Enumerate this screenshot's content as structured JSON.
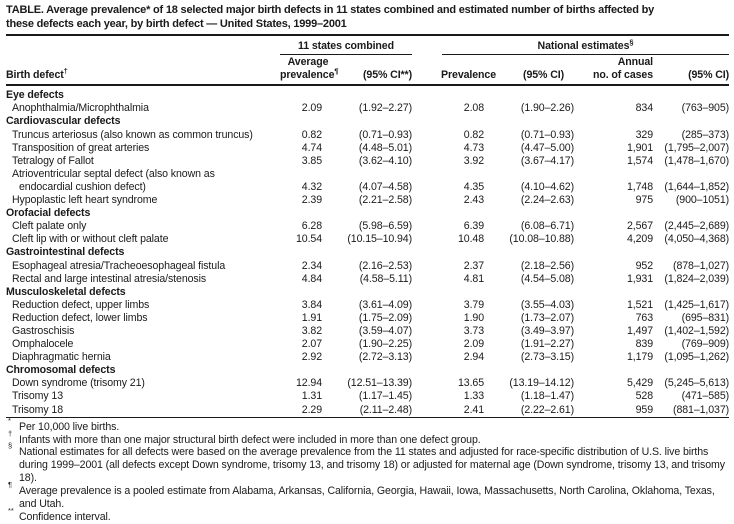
{
  "title": "TABLE. Average prevalence* of 18 selected major birth defects in 11 states combined and estimated number of births affected by\nthese defects each year, by birth defect — United States, 1999–2001",
  "header": {
    "group_states": "11 states combined",
    "group_national": {
      "text": "National estimates",
      "sup": "§"
    },
    "col_birth_defect": {
      "text": "Birth defect",
      "sup": "†"
    },
    "col_avg_prevalence": {
      "line1": "Average",
      "line2": "prevalence",
      "sup": "¶"
    },
    "col_ci_states": "(95% CI**)",
    "col_prevalence": "Prevalence",
    "col_ci_national": "(95% CI)",
    "col_annual_cases": {
      "line1": "Annual",
      "line2": "no. of cases"
    },
    "col_ci_cases": "(95% CI)"
  },
  "rows": [
    {
      "type": "category",
      "label": "Eye defects"
    },
    {
      "type": "data",
      "label": "Anophthalmia/Microphthalmia",
      "values": [
        "2.09",
        "(1.92–2.27)",
        "2.08",
        "(1.90–2.26)",
        "834",
        "(763–905)"
      ]
    },
    {
      "type": "category",
      "label": "Cardiovascular defects"
    },
    {
      "type": "data",
      "label": "Truncus arteriosus (also known as common truncus)",
      "values": [
        "0.82",
        "(0.71–0.93)",
        "0.82",
        "(0.71–0.93)",
        "329",
        "(285–373)"
      ]
    },
    {
      "type": "data",
      "label": "Transposition of great arteries",
      "values": [
        "4.74",
        "(4.48–5.01)",
        "4.73",
        "(4.47–5.00)",
        "1,901",
        "(1,795–2,007)"
      ]
    },
    {
      "type": "data",
      "label": "Tetralogy of Fallot",
      "values": [
        "3.85",
        "(3.62–4.10)",
        "3.92",
        "(3.67–4.17)",
        "1,574",
        "(1,478–1,670)"
      ]
    },
    {
      "type": "data",
      "label": "Atrioventricular septal defect (also known as",
      "label2": "endocardial cushion defect)",
      "values": [
        "4.32",
        "(4.07–4.58)",
        "4.35",
        "(4.10–4.62)",
        "1,748",
        "(1,644–1,852)"
      ]
    },
    {
      "type": "data",
      "label": "Hypoplastic left heart syndrome",
      "values": [
        "2.39",
        "(2.21–2.58)",
        "2.43",
        "(2.24–2.63)",
        "975",
        "(900–1051)"
      ]
    },
    {
      "type": "category",
      "label": "Orofacial defects"
    },
    {
      "type": "data",
      "label": "Cleft palate only",
      "values": [
        "6.28",
        "(5.98–6.59)",
        "6.39",
        "(6.08–6.71)",
        "2,567",
        "(2,445–2,689)"
      ]
    },
    {
      "type": "data",
      "label": "Cleft lip with or without cleft palate",
      "values": [
        "10.54",
        "(10.15–10.94)",
        "10.48",
        "(10.08–10.88)",
        "4,209",
        "(4,050–4,368)"
      ]
    },
    {
      "type": "category",
      "label": "Gastrointestinal defects"
    },
    {
      "type": "data",
      "label": "Esophageal atresia/Tracheoesophageal fistula",
      "values": [
        "2.34",
        "(2.16–2.53)",
        "2.37",
        "(2.18–2.56)",
        "952",
        "(878–1,027)"
      ]
    },
    {
      "type": "data",
      "label": "Rectal and large intestinal atresia/stenosis",
      "values": [
        "4.84",
        "(4.58–5.11)",
        "4.81",
        "(4.54–5.08)",
        "1,931",
        "(1,824–2,039)"
      ]
    },
    {
      "type": "category",
      "label": "Musculoskeletal defects"
    },
    {
      "type": "data",
      "label": "Reduction defect, upper limbs",
      "values": [
        "3.84",
        "(3.61–4.09)",
        "3.79",
        "(3.55–4.03)",
        "1,521",
        "(1,425–1,617)"
      ]
    },
    {
      "type": "data",
      "label": "Reduction defect, lower limbs",
      "values": [
        "1.91",
        "(1.75–2.09)",
        "1.90",
        "(1.73–2.07)",
        "763",
        "(695–831)"
      ]
    },
    {
      "type": "data",
      "label": "Gastroschisis",
      "values": [
        "3.82",
        "(3.59–4.07)",
        "3.73",
        "(3.49–3.97)",
        "1,497",
        "(1,402–1,592)"
      ]
    },
    {
      "type": "data",
      "label": "Omphalocele",
      "values": [
        "2.07",
        "(1.90–2.25)",
        "2.09",
        "(1.91–2.27)",
        "839",
        "(769–909)"
      ]
    },
    {
      "type": "data",
      "label": "Diaphragmatic hernia",
      "values": [
        "2.92",
        "(2.72–3.13)",
        "2.94",
        "(2.73–3.15)",
        "1,179",
        "(1,095–1,262)"
      ]
    },
    {
      "type": "category",
      "label": "Chromosomal defects"
    },
    {
      "type": "data",
      "label": "Down syndrome (trisomy 21)",
      "values": [
        "12.94",
        "(12.51–13.39)",
        "13.65",
        "(13.19–14.12)",
        "5,429",
        "(5,245–5,613)"
      ]
    },
    {
      "type": "data",
      "label": "Trisomy 13",
      "values": [
        "1.31",
        "(1.17–1.45)",
        "1.33",
        "(1.18–1.47)",
        "528",
        "(471–585)"
      ]
    },
    {
      "type": "data",
      "label": "Trisomy 18",
      "values": [
        "2.29",
        "(2.11–2.48)",
        "2.41",
        "(2.22–2.61)",
        "959",
        "(881–1,037)"
      ]
    }
  ],
  "footnotes": [
    {
      "marker": "*",
      "text": "Per 10,000 live births."
    },
    {
      "marker": "†",
      "text": "Infants with more than one major structural birth defect were included in more than one defect group."
    },
    {
      "marker": "§",
      "text": "National estimates for all defects were based on the average prevalence from the 11 states and adjusted for race-specific distribution of U.S. live births during 1999–2001 (all defects except Down syndrome, trisomy 13, and trisomy 18) or adjusted for maternal age (Down syndrome, trisomy 13, and trisomy 18)."
    },
    {
      "marker": "¶",
      "text": "Average prevalence is a pooled estimate from Alabama, Arkansas, California, Georgia, Hawaii, Iowa, Massachusetts, North Carolina, Oklahoma, Texas, and Utah."
    },
    {
      "marker": "**",
      "text": "Confidence interval."
    }
  ]
}
